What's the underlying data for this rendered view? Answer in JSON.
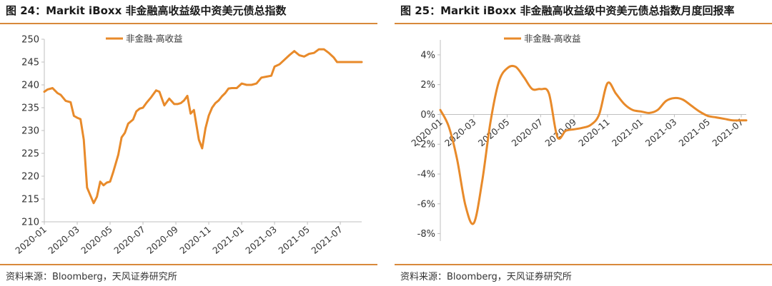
{
  "charts": [
    {
      "title": "图 24：Markit iBoxx 非金融高收益级中资美元债总指数",
      "source": "资料来源：Bloomberg，天风证券研究所",
      "legend": "非金融-高收益"
    },
    {
      "title": "图 25：Markit iBoxx 非金融高收益级中资美元债总指数月度回报率",
      "source": "资料来源：Bloomberg，天风证券研究所",
      "legend": "非金融-高收益"
    }
  ],
  "colors": {
    "series": "#e88a2a",
    "rule": "#d8893a",
    "axis": "#bfbfbf"
  },
  "chart_data": [
    {
      "type": "line",
      "title": "图 24：Markit iBoxx 非金融高收益级中资美元债总指数",
      "series_name": "非金融-高收益",
      "ylim": [
        210,
        250
      ],
      "yticks": [
        210,
        215,
        220,
        225,
        230,
        235,
        240,
        245,
        250
      ],
      "ytick_labels": [
        "210",
        "215",
        "220",
        "225",
        "230",
        "235",
        "240",
        "245",
        "250"
      ],
      "xlim": [
        0,
        19.3
      ],
      "xticks": [
        0,
        2,
        4,
        6,
        8,
        10,
        12,
        14,
        16,
        18
      ],
      "xtick_labels": [
        "2020-01",
        "2020-03",
        "2020-05",
        "2020-07",
        "2020-09",
        "2020-11",
        "2021-01",
        "2021-03",
        "2021-05",
        "2021-07"
      ],
      "x": [
        0.0,
        0.2,
        0.5,
        0.8,
        1.0,
        1.3,
        1.6,
        1.8,
        2.0,
        2.2,
        2.4,
        2.6,
        2.8,
        3.0,
        3.2,
        3.4,
        3.6,
        3.8,
        4.0,
        4.2,
        4.5,
        4.7,
        4.9,
        5.1,
        5.4,
        5.6,
        5.8,
        6.0,
        6.2,
        6.5,
        6.8,
        7.0,
        7.3,
        7.6,
        7.9,
        8.1,
        8.3,
        8.5,
        8.7,
        8.9,
        9.1,
        9.4,
        9.6,
        9.8,
        10.0,
        10.2,
        10.4,
        10.6,
        10.8,
        11.0,
        11.2,
        11.4,
        11.7,
        12.0,
        12.3,
        12.6,
        12.9,
        13.2,
        13.5,
        13.8,
        14.0,
        14.3,
        14.6,
        14.9,
        15.2,
        15.5,
        15.8,
        16.1,
        16.4,
        16.7,
        17.0,
        17.3,
        17.6,
        17.8,
        18.1,
        18.3,
        18.6,
        18.9,
        19.1,
        19.3
      ],
      "y": [
        238.5,
        239.0,
        239.3,
        238.2,
        237.8,
        236.5,
        236.2,
        233.2,
        232.8,
        232.5,
        228.0,
        217.5,
        215.8,
        214.1,
        215.5,
        218.8,
        218.0,
        218.6,
        218.8,
        221.0,
        224.7,
        228.5,
        229.5,
        231.5,
        232.4,
        234.2,
        234.8,
        235.0,
        236.0,
        237.3,
        238.8,
        238.5,
        235.5,
        237.0,
        235.8,
        235.8,
        236.0,
        236.6,
        237.6,
        233.7,
        234.5,
        228.0,
        226.1,
        230.5,
        233.3,
        235.0,
        236.0,
        236.6,
        237.5,
        238.2,
        239.2,
        239.3,
        239.3,
        240.3,
        240.0,
        240.0,
        240.3,
        241.6,
        241.8,
        242.0,
        244.0,
        244.5,
        245.5,
        246.5,
        247.4,
        246.5,
        246.2,
        246.8,
        247.0,
        247.8,
        247.8,
        247.0,
        246.0,
        245.0,
        245.0,
        245.0,
        245.0,
        245.0,
        245.0,
        245.0
      ]
    },
    {
      "type": "line",
      "title": "图 25：Markit iBoxx 非金融高收益级中资美元债总指数月度回报率",
      "series_name": "非金融-高收益",
      "ylim": [
        -8.5,
        5.0
      ],
      "yticks": [
        -8,
        -6,
        -4,
        -2,
        0,
        2,
        4
      ],
      "ytick_labels": [
        "-8%",
        "-6%",
        "-4%",
        "-2%",
        "0%",
        "2%",
        "4%"
      ],
      "xlim": [
        0,
        18.3
      ],
      "xticks": [
        0,
        2,
        4,
        6,
        8,
        10,
        12,
        14,
        16,
        18
      ],
      "xtick_labels": [
        "2020-01",
        "2020-03",
        "2020-05",
        "2020-07",
        "2020-09",
        "2020-11",
        "2021-01",
        "2021-03",
        "2021-05",
        "2021-07"
      ],
      "x": [
        0.0,
        0.5,
        1.0,
        1.5,
        2.0,
        2.5,
        3.0,
        3.5,
        4.0,
        4.5,
        5.0,
        5.5,
        6.0,
        6.5,
        7.0,
        7.5,
        8.0,
        8.5,
        9.0,
        9.5,
        10.0,
        10.5,
        11.0,
        11.5,
        12.0,
        12.5,
        13.0,
        13.5,
        14.0,
        14.5,
        15.0,
        15.5,
        16.0,
        16.5,
        17.0,
        17.5,
        18.0,
        18.3
      ],
      "y": [
        0.3,
        -0.8,
        -3.0,
        -6.1,
        -7.3,
        -4.5,
        -0.5,
        2.2,
        3.1,
        3.2,
        2.5,
        1.7,
        1.7,
        1.4,
        -1.5,
        -1.1,
        -1.0,
        -0.9,
        -0.7,
        0.0,
        2.1,
        1.4,
        0.7,
        0.3,
        0.2,
        0.1,
        0.3,
        0.9,
        1.1,
        1.0,
        0.6,
        0.2,
        -0.1,
        -0.2,
        -0.3,
        -0.4,
        -0.4,
        -0.4
      ]
    }
  ]
}
